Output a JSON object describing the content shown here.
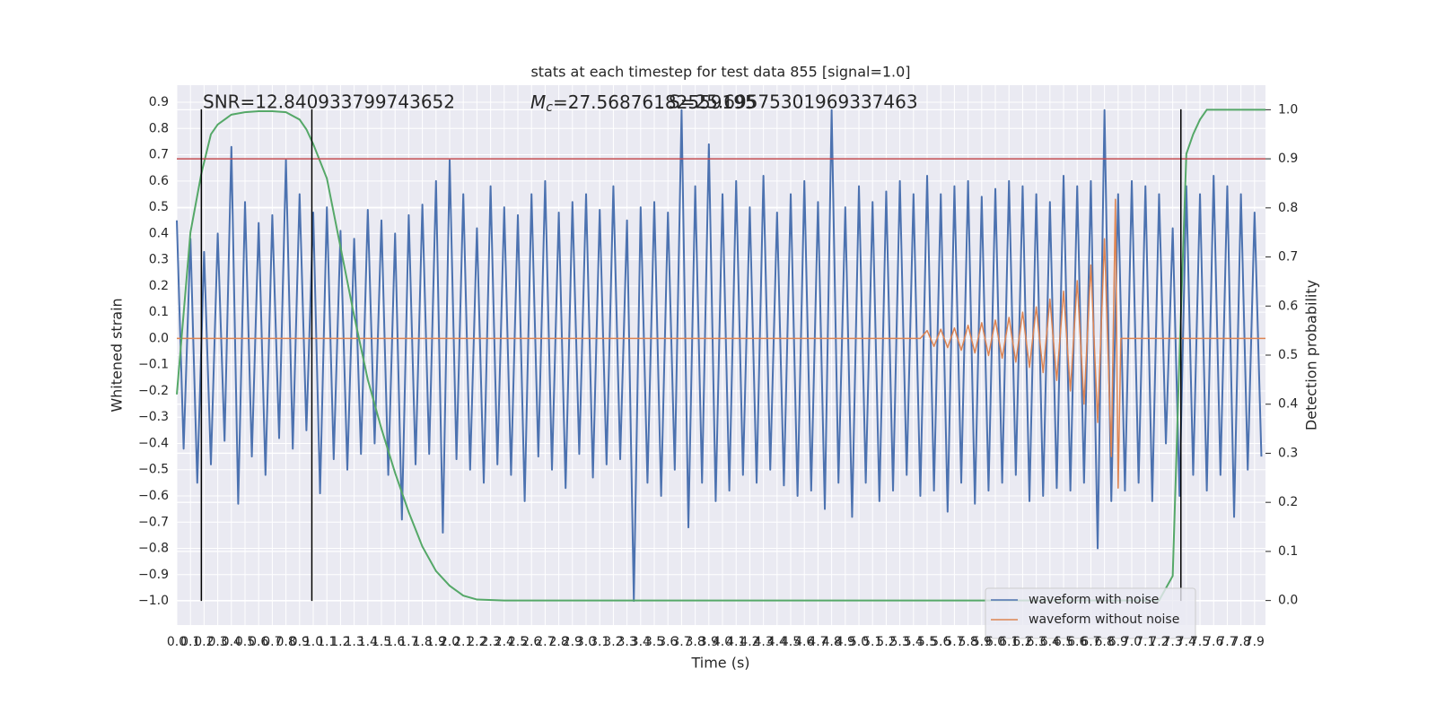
{
  "chart_data": {
    "type": "line",
    "title": "stats at each timestep for test data 855 [signal=1.0]",
    "x_label": "Time (s)",
    "y_label": "Whitened strain",
    "y2_label": "Detection probability",
    "annotations": {
      "snr": "SNR=12.840933799743652",
      "mc_symbol": "M",
      "mc_subscript": "c",
      "mc_value": "=27.56876182559195",
      "second": "S=25.69575301969337463"
    },
    "xlim": [
      0,
      7.98
    ],
    "ylim": [
      -1.092,
      0.965
    ],
    "y2lim": [
      -0.05,
      1.05
    ],
    "grid": true,
    "legend": "lower right",
    "xticks": [
      {
        "value": 0,
        "label": "0.0"
      },
      0.1,
      0.2,
      0.3,
      0.4,
      0.5,
      0.6,
      0.7,
      0.8,
      0.9,
      {
        "value": 1,
        "label": "1.0"
      },
      1.1,
      1.2,
      1.3,
      1.4,
      1.5,
      1.6,
      1.7,
      1.8,
      1.9,
      {
        "value": 2,
        "label": "2.0"
      },
      2.1,
      2.2,
      2.3,
      2.4,
      2.5,
      2.6,
      2.7,
      2.8,
      2.9,
      {
        "value": 3,
        "label": "3.0"
      },
      3.1,
      3.2,
      3.3,
      3.4,
      3.5,
      3.6,
      3.7,
      3.8,
      3.9,
      {
        "value": 4,
        "label": "4.0"
      },
      4.1,
      4.2,
      4.3,
      4.4,
      4.5,
      4.6,
      4.7,
      4.8,
      4.9,
      {
        "value": 5,
        "label": "5.0"
      },
      5.1,
      5.2,
      5.3,
      5.4,
      5.5,
      5.6,
      5.7,
      5.8,
      5.9,
      {
        "value": 6,
        "label": "6.0"
      },
      6.1,
      6.2,
      6.3,
      6.4,
      6.5,
      6.6,
      6.7,
      6.8,
      6.9,
      {
        "value": 7,
        "label": "7.0"
      },
      7.1,
      7.2,
      7.3,
      7.4,
      7.5,
      7.6,
      7.7,
      7.8,
      7.9
    ],
    "yticks": [
      {
        "value": -1,
        "label": "−1.0"
      },
      {
        "value": -0.9,
        "label": "−0.9"
      },
      {
        "value": -0.8,
        "label": "−0.8"
      },
      {
        "value": -0.7,
        "label": "−0.7"
      },
      {
        "value": -0.6,
        "label": "−0.6"
      },
      {
        "value": -0.5,
        "label": "−0.5"
      },
      {
        "value": -0.4,
        "label": "−0.4"
      },
      {
        "value": -0.3,
        "label": "−0.3"
      },
      {
        "value": -0.2,
        "label": "−0.2"
      },
      {
        "value": -0.1,
        "label": "−0.1"
      },
      {
        "value": 0,
        "label": "0.0"
      },
      0.1,
      0.2,
      0.3,
      0.4,
      0.5,
      0.6,
      0.7,
      0.8,
      0.9
    ],
    "y2ticks": [
      {
        "value": 0,
        "label": "0.0"
      },
      0.1,
      0.2,
      0.3,
      0.4,
      0.5,
      0.6,
      0.7,
      0.8,
      0.9,
      {
        "value": 1,
        "label": "1.0"
      }
    ],
    "series": [
      {
        "name": "waveform with noise",
        "color": "#4c72b0",
        "x": [
          0,
          0.05,
          0.1,
          0.15,
          0.2,
          0.25,
          0.3,
          0.35,
          0.4,
          0.45,
          0.5,
          0.55,
          0.6,
          0.65,
          0.7,
          0.75,
          0.8,
          0.85,
          0.9,
          0.95,
          1,
          1.05,
          1.1,
          1.15,
          1.2,
          1.25,
          1.3,
          1.35,
          1.4,
          1.45,
          1.5,
          1.55,
          1.6,
          1.65,
          1.7,
          1.75,
          1.8,
          1.85,
          1.9,
          1.95,
          2,
          2.05,
          2.1,
          2.15,
          2.2,
          2.25,
          2.3,
          2.35,
          2.4,
          2.45,
          2.5,
          2.55,
          2.6,
          2.65,
          2.7,
          2.75,
          2.8,
          2.85,
          2.9,
          2.95,
          3,
          3.05,
          3.1,
          3.15,
          3.2,
          3.25,
          3.3,
          3.35,
          3.4,
          3.45,
          3.5,
          3.55,
          3.6,
          3.65,
          3.7,
          3.75,
          3.8,
          3.85,
          3.9,
          3.95,
          4,
          4.05,
          4.1,
          4.15,
          4.2,
          4.25,
          4.3,
          4.35,
          4.4,
          4.45,
          4.5,
          4.55,
          4.6,
          4.65,
          4.7,
          4.75,
          4.8,
          4.85,
          4.9,
          4.95,
          5,
          5.05,
          5.1,
          5.15,
          5.2,
          5.25,
          5.3,
          5.35,
          5.4,
          5.45,
          5.5,
          5.55,
          5.6,
          5.65,
          5.7,
          5.75,
          5.8,
          5.85,
          5.9,
          5.95,
          6,
          6.05,
          6.1,
          6.15,
          6.2,
          6.25,
          6.3,
          6.35,
          6.4,
          6.45,
          6.5,
          6.55,
          6.6,
          6.65,
          6.7,
          6.75,
          6.8,
          6.85,
          6.9,
          6.95,
          7,
          7.05,
          7.1,
          7.15,
          7.2,
          7.25,
          7.3,
          7.35,
          7.4,
          7.45,
          7.5,
          7.55,
          7.6,
          7.65,
          7.7,
          7.75,
          7.8,
          7.85,
          7.9,
          7.95
        ],
        "values": [
          0.45,
          -0.42,
          0.38,
          -0.55,
          0.33,
          -0.48,
          0.4,
          -0.39,
          0.73,
          -0.63,
          0.52,
          -0.45,
          0.44,
          -0.52,
          0.47,
          -0.38,
          0.68,
          -0.42,
          0.55,
          -0.35,
          0.48,
          -0.59,
          0.5,
          -0.46,
          0.41,
          -0.5,
          0.38,
          -0.44,
          0.49,
          -0.4,
          0.45,
          -0.52,
          0.4,
          -0.69,
          0.47,
          -0.48,
          0.51,
          -0.44,
          0.6,
          -0.74,
          0.68,
          -0.46,
          0.55,
          -0.5,
          0.42,
          -0.55,
          0.58,
          -0.48,
          0.5,
          -0.52,
          0.47,
          -0.62,
          0.55,
          -0.45,
          0.6,
          -0.5,
          0.48,
          -0.57,
          0.52,
          -0.44,
          0.55,
          -0.53,
          0.49,
          -0.48,
          0.58,
          -0.46,
          0.45,
          -1.0,
          0.5,
          -0.55,
          0.52,
          -0.6,
          0.48,
          -0.5,
          0.87,
          -0.72,
          0.58,
          -0.55,
          0.74,
          -0.62,
          0.55,
          -0.58,
          0.6,
          -0.52,
          0.5,
          -0.55,
          0.62,
          -0.5,
          0.48,
          -0.56,
          0.55,
          -0.6,
          0.6,
          -0.58,
          0.52,
          -0.65,
          0.87,
          -0.55,
          0.5,
          -0.68,
          0.58,
          -0.55,
          0.52,
          -0.62,
          0.56,
          -0.58,
          0.6,
          -0.52,
          0.55,
          -0.6,
          0.62,
          -0.58,
          0.55,
          -0.66,
          0.58,
          -0.55,
          0.6,
          -0.63,
          0.54,
          -0.58,
          0.57,
          -0.55,
          0.6,
          -0.52,
          0.58,
          -0.62,
          0.55,
          -0.6,
          0.52,
          -0.57,
          0.62,
          -0.58,
          0.58,
          -0.55,
          0.6,
          -0.8,
          0.87,
          -0.62,
          0.55,
          -0.58,
          0.6,
          -0.55,
          0.58,
          -0.62,
          0.55,
          -0.4,
          0.42,
          -0.6,
          0.58,
          -0.52,
          0.55,
          -0.58,
          0.62,
          -0.52,
          0.58,
          -0.68,
          0.55,
          -0.5,
          0.48,
          -0.45
        ]
      },
      {
        "name": "waveform without noise",
        "color": "#dd8452",
        "x": [
          0,
          5.45,
          5.5,
          5.55,
          5.6,
          5.65,
          5.7,
          5.75,
          5.8,
          5.85,
          5.9,
          5.95,
          6,
          6.05,
          6.1,
          6.15,
          6.2,
          6.25,
          6.3,
          6.35,
          6.4,
          6.45,
          6.5,
          6.55,
          6.6,
          6.65,
          6.7,
          6.75,
          6.8,
          6.85,
          6.88,
          6.9,
          6.92,
          7.98
        ],
        "values": [
          0,
          0,
          0.03,
          -0.03,
          0.035,
          -0.035,
          0.04,
          -0.045,
          0.05,
          -0.055,
          0.06,
          -0.065,
          0.07,
          -0.075,
          0.08,
          -0.09,
          0.1,
          -0.11,
          0.12,
          -0.13,
          0.15,
          -0.16,
          0.18,
          -0.2,
          0.22,
          -0.25,
          0.28,
          -0.32,
          0.38,
          -0.45,
          0.53,
          -0.57,
          0,
          0
        ]
      }
    ],
    "probability": {
      "color": "#55a868",
      "x": [
        0,
        0.1,
        0.18,
        0.25,
        0.3,
        0.4,
        0.5,
        0.6,
        0.7,
        0.8,
        0.9,
        0.95,
        1,
        1.1,
        1.2,
        1.3,
        1.4,
        1.5,
        1.6,
        1.7,
        1.8,
        1.9,
        2,
        2.1,
        2.2,
        2.4,
        7.2,
        7.3,
        7.35,
        7.4,
        7.45,
        7.5,
        7.55,
        7.98
      ],
      "values": [
        0.42,
        0.75,
        0.87,
        0.95,
        0.97,
        0.99,
        0.995,
        0.997,
        0.997,
        0.995,
        0.98,
        0.96,
        0.93,
        0.86,
        0.72,
        0.58,
        0.45,
        0.35,
        0.26,
        0.18,
        0.11,
        0.06,
        0.03,
        0.01,
        0.002,
        0,
        0,
        0.05,
        0.5,
        0.91,
        0.95,
        0.98,
        1,
        1
      ]
    },
    "threshold": {
      "value": 0.9,
      "color": "#c44e52"
    },
    "vlines": {
      "x": [
        0.18,
        0.99,
        7.36
      ],
      "ylim": [
        -1.0,
        0.873
      ],
      "color": "#000000"
    }
  }
}
